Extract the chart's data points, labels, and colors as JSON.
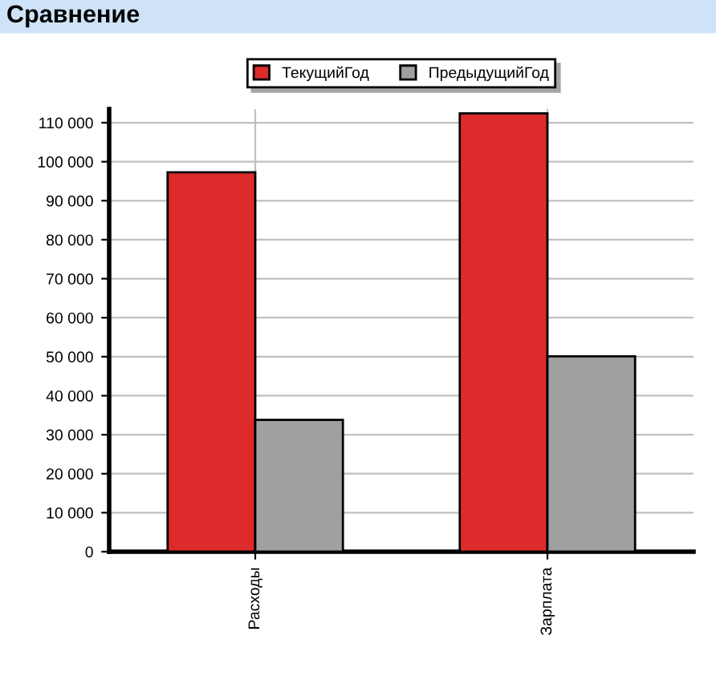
{
  "chart_data": {
    "type": "bar",
    "title": "Сравнение",
    "categories": [
      "Расходы",
      "Зарплата"
    ],
    "series": [
      {
        "name": "ТекущийГод",
        "color": "#dd2b2b",
        "values": [
          97300,
          112400
        ]
      },
      {
        "name": "ПредыдущийГод",
        "color": "#a0a0a0",
        "values": [
          33800,
          50100
        ]
      }
    ],
    "ylim": [
      0,
      113500
    ],
    "yticks": [
      {
        "value": 0,
        "label": "0"
      },
      {
        "value": 10000,
        "label": "10 000"
      },
      {
        "value": 20000,
        "label": "20 000"
      },
      {
        "value": 30000,
        "label": "30 000"
      },
      {
        "value": 40000,
        "label": "40 000"
      },
      {
        "value": 50000,
        "label": "50 000"
      },
      {
        "value": 60000,
        "label": "60 000"
      },
      {
        "value": 70000,
        "label": "70 000"
      },
      {
        "value": 80000,
        "label": "80 000"
      },
      {
        "value": 90000,
        "label": "90 000"
      },
      {
        "value": 100000,
        "label": "100 000"
      },
      {
        "value": 110000,
        "label": "110 000"
      }
    ],
    "grid": true,
    "legend": "top"
  }
}
